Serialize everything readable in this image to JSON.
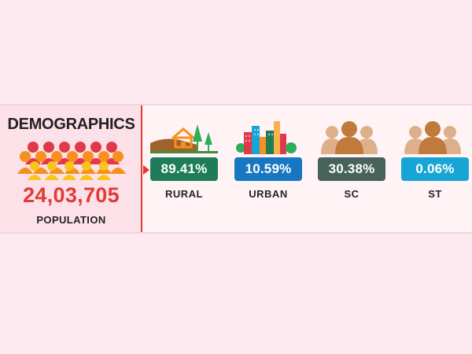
{
  "title": "DEMOGRAPHICS",
  "population": {
    "value": "24,03,705",
    "label": "POPULATION"
  },
  "stats": [
    {
      "label": "RURAL",
      "value": "89.41%",
      "color": "#1e7d58",
      "icon": "rural-landscape-icon"
    },
    {
      "label": "URBAN",
      "value": "10.59%",
      "color": "#1777c1",
      "icon": "city-buildings-icon"
    },
    {
      "label": "SC",
      "value": "30.38%",
      "color": "#46625a",
      "icon": "people-group-icon"
    },
    {
      "label": "ST",
      "value": "0.06%",
      "color": "#16a5d4",
      "icon": "people-group-icon"
    }
  ],
  "colors": {
    "background": "#fdeaf1",
    "panel": "#fde1e8",
    "accent_red": "#e23a36"
  }
}
